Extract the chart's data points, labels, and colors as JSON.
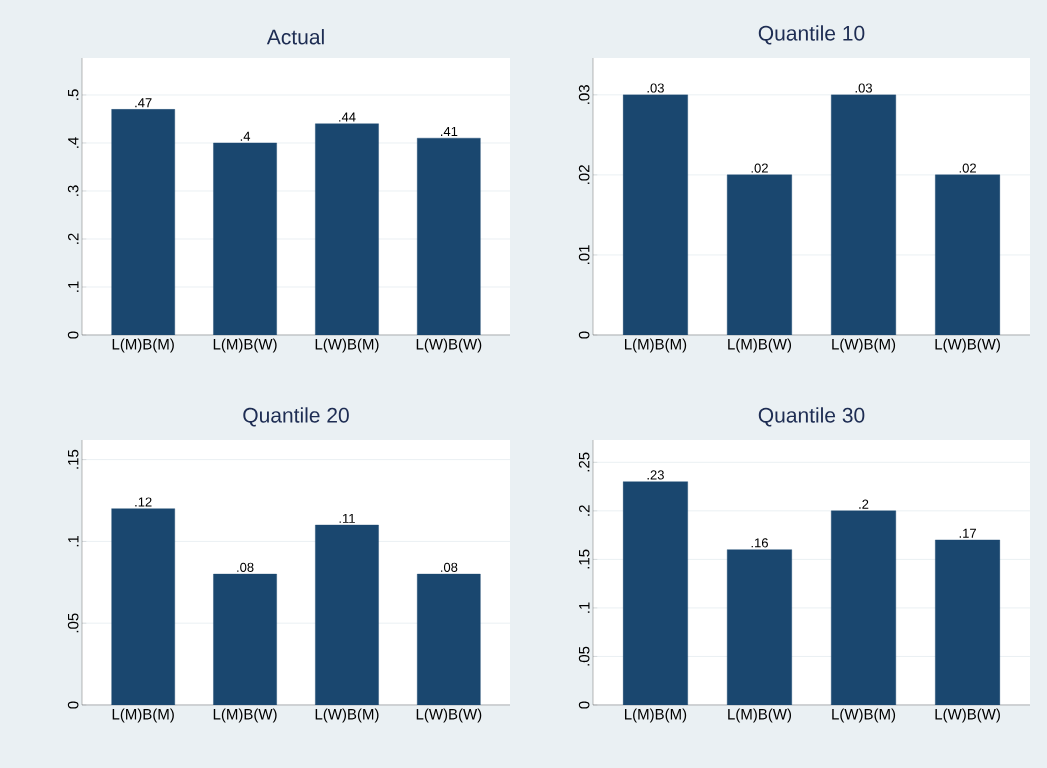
{
  "chart_data": [
    {
      "type": "bar",
      "title": "Actual",
      "categories": [
        "L(M)B(M)",
        "L(M)B(W)",
        "L(W)B(M)",
        "L(W)B(W)"
      ],
      "values": [
        0.47,
        0.4,
        0.44,
        0.41
      ],
      "value_labels": [
        ".47",
        ".4",
        ".44",
        ".41"
      ],
      "color": "#1a476f",
      "ylim": [
        0,
        0.577
      ],
      "yticks": [
        0,
        {
          "value": 0.1,
          "label": ".1"
        },
        {
          "value": 0.2,
          "label": ".2"
        },
        {
          "value": 0.3,
          "label": ".3"
        },
        {
          "value": 0.4,
          "label": ".4"
        },
        {
          "value": 0.5,
          "label": ".5"
        }
      ],
      "grid": "y"
    },
    {
      "type": "bar",
      "title": "Quantile 10",
      "categories": [
        "L(M)B(M)",
        "L(M)B(W)",
        "L(W)B(M)",
        "L(W)B(W)"
      ],
      "values": [
        0.03,
        0.02,
        0.03,
        0.02
      ],
      "value_labels": [
        ".03",
        ".02",
        ".03",
        ".02"
      ],
      "color": "#1a476f",
      "ylim": [
        0,
        0.0346
      ],
      "yticks": [
        0,
        {
          "value": 0.01,
          "label": ".01"
        },
        {
          "value": 0.02,
          "label": ".02"
        },
        {
          "value": 0.03,
          "label": ".03"
        }
      ],
      "grid": "y"
    },
    {
      "type": "bar",
      "title": "Quantile 20",
      "categories": [
        "L(M)B(M)",
        "L(M)B(W)",
        "L(W)B(M)",
        "L(W)B(W)"
      ],
      "values": [
        0.12,
        0.08,
        0.11,
        0.08
      ],
      "value_labels": [
        ".12",
        ".08",
        ".11",
        ".08"
      ],
      "color": "#1a476f",
      "ylim": [
        0,
        0.162
      ],
      "yticks": [
        0,
        {
          "value": 0.05,
          "label": ".05"
        },
        {
          "value": 0.1,
          "label": ".1"
        },
        {
          "value": 0.15,
          "label": ".15"
        }
      ],
      "grid": "y"
    },
    {
      "type": "bar",
      "title": "Quantile 30",
      "categories": [
        "L(M)B(M)",
        "L(M)B(W)",
        "L(W)B(M)",
        "L(W)B(W)"
      ],
      "values": [
        0.23,
        0.16,
        0.2,
        0.17
      ],
      "value_labels": [
        ".23",
        ".16",
        ".2",
        ".17"
      ],
      "color": "#1a476f",
      "ylim": [
        0,
        0.273
      ],
      "yticks": [
        0,
        {
          "value": 0.05,
          "label": ".05"
        },
        {
          "value": 0.1,
          "label": ".1"
        },
        {
          "value": 0.15,
          "label": ".15"
        },
        {
          "value": 0.2,
          "label": ".2"
        },
        {
          "value": 0.25,
          "label": ".25"
        }
      ],
      "grid": "y"
    }
  ]
}
